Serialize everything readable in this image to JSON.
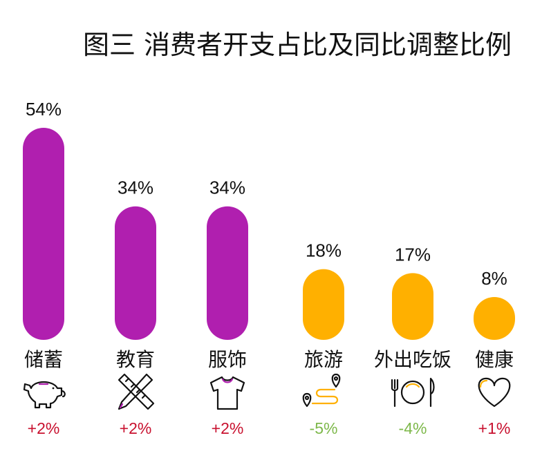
{
  "chart_data": {
    "type": "bar",
    "title": "图三 消费者开支占比及同比调整比例",
    "categories": [
      "储蓄",
      "教育",
      "服饰",
      "旅游",
      "外出吃饭",
      "健康"
    ],
    "values": [
      54,
      34,
      34,
      18,
      17,
      8
    ],
    "value_labels": [
      "54%",
      "34%",
      "34%",
      "18%",
      "17%",
      "8%"
    ],
    "yoy_change": [
      2,
      2,
      2,
      -5,
      -4,
      1
    ],
    "yoy_change_labels": [
      "+2%",
      "+2%",
      "+2%",
      "-5%",
      "-4%",
      "+1%"
    ],
    "bar_colors": [
      "#B01FAF",
      "#B01FAF",
      "#B01FAF",
      "#FFB000",
      "#FFB000",
      "#FFB000"
    ],
    "change_colors": {
      "positive": "#C8102E",
      "negative": "#7DB84A"
    },
    "icons": [
      "piggy-bank-icon",
      "ruler-pencil-icon",
      "tshirt-icon",
      "route-map-icon",
      "plate-fork-knife-icon",
      "heart-icon"
    ],
    "ylim": [
      0,
      54
    ],
    "grid": false,
    "legend": "none"
  }
}
